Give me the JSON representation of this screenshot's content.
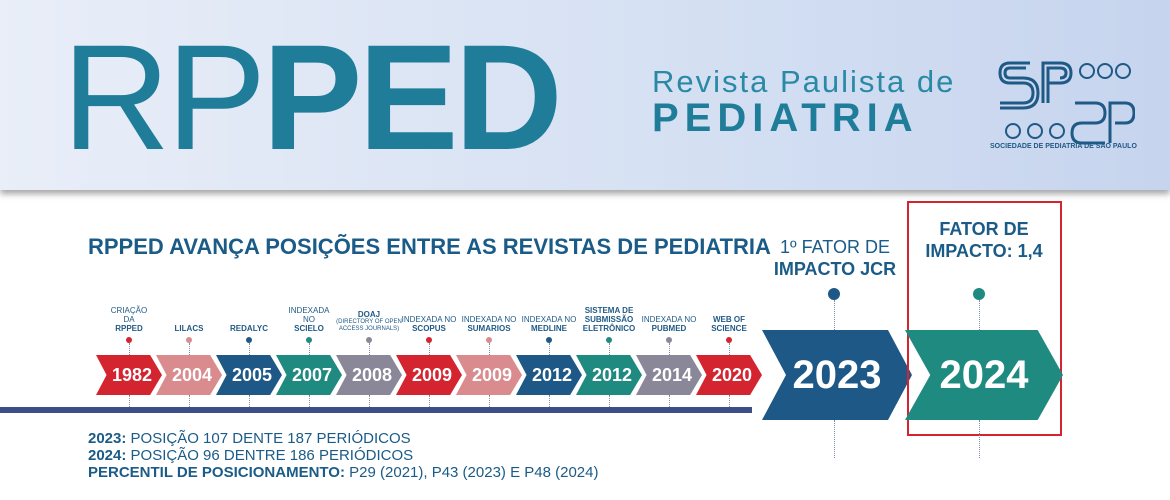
{
  "header": {
    "logo_thin": "RP",
    "logo_bold": "PED",
    "subtitle_line1": "Revista Paulista de",
    "subtitle_line2": "PEDIATRIA",
    "society_logo_text": "SPSP",
    "society_caption": "SOCIEDADE DE PEDIATRIA DE SÃO PAULO"
  },
  "headline": "RPPED AVANÇA POSIÇÕES ENTRE AS REVISTAS DE PEDIATRIA",
  "timeline": [
    {
      "year": "1982",
      "label_pre": "CRIAÇÃO",
      "label_b1": "DA ",
      "label_b2": "RPPED",
      "color": "#d4242f"
    },
    {
      "year": "2004",
      "label_pre": "",
      "label_b1": "",
      "label_b2": "LILACS",
      "color": "#d98b8e"
    },
    {
      "year": "2005",
      "label_pre": "",
      "label_b1": "",
      "label_b2": "REDALYC",
      "color": "#1e5886"
    },
    {
      "year": "2007",
      "label_pre": "INDEXADA",
      "label_b1": "NO ",
      "label_b2": "SCIELO",
      "color": "#1f8a80"
    },
    {
      "year": "2008",
      "label_pre": "DOAJ",
      "label_b1": "(DIRECTORY OF OPEN ACCESS JOURNALS)",
      "label_b2": "",
      "color": "#8a8898"
    },
    {
      "year": "2009",
      "label_pre": "INDEXADA NO",
      "label_b1": "",
      "label_b2": "SCOPUS",
      "color": "#d4242f"
    },
    {
      "year": "2009",
      "label_pre": "INDEXADA NO",
      "label_b1": "",
      "label_b2": "SUMARIOS",
      "color": "#d98b8e"
    },
    {
      "year": "2012",
      "label_pre": "INDEXADA NO",
      "label_b1": "",
      "label_b2": "MEDLINE",
      "color": "#1e5886"
    },
    {
      "year": "2012",
      "label_pre": "SISTEMA DE",
      "label_b1": "SUBMISSÃO",
      "label_b2": "ELETRÔNICO",
      "color": "#1f8a80"
    },
    {
      "year": "2014",
      "label_pre": "INDEXADA NO",
      "label_b1": "",
      "label_b2": "PUBMED",
      "color": "#8a8898"
    },
    {
      "year": "2020",
      "label_pre": "",
      "label_b1": "WEB OF",
      "label_b2": "SCIENCE",
      "color": "#d4242f"
    }
  ],
  "jcr": {
    "year": "2023",
    "label_line1": "1º FATOR DE",
    "label_line2": "IMPACTO JCR",
    "color": "#1e5886"
  },
  "impact": {
    "year": "2024",
    "label_line1": "FATOR DE",
    "label_line2": "IMPACTO: 1,4",
    "color": "#1f8a80"
  },
  "stats": [
    {
      "key": "2023:",
      "value": " POSIÇÃO 107 DENTE 187 PERIÓDICOS"
    },
    {
      "key": "2024:",
      "value": " POSIÇÃO 96 DENTRE 186 PERIÓDICOS"
    },
    {
      "key": "PERCENTIL DE POSICIONAMENTO:",
      "value": " P29 (2021), P43 (2023) E P48 (2024)"
    }
  ],
  "colors": {
    "brand": "#1f7d9a",
    "navy": "#1a5b87",
    "highlight_box": "#d4242f"
  }
}
